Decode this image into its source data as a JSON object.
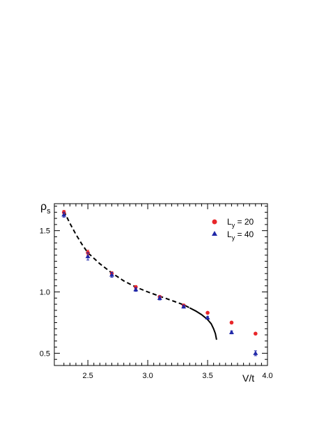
{
  "chart_data": {
    "type": "scatter",
    "xlabel": "V/t",
    "ylabel_main": "ρ",
    "ylabel_sub": "s",
    "xlim": [
      2.22,
      4.0
    ],
    "ylim": [
      0.4,
      1.72
    ],
    "xticks": [
      2.5,
      3.0,
      3.5,
      4.0
    ],
    "xtick_labels": [
      "2.5",
      "3.0",
      "3.5",
      "4.0"
    ],
    "yticks": [
      0.5,
      1.0,
      1.5
    ],
    "ytick_labels": [
      "0.5",
      "1.0",
      "1.5"
    ],
    "grid": false,
    "legend_position": "top-right",
    "series": [
      {
        "name_main": "L",
        "name_sub": "y",
        "name_rest": " = 20",
        "marker": "circle",
        "color": "#e8262a",
        "points": [
          {
            "x": 2.3,
            "y": 1.65,
            "err": 0.015
          },
          {
            "x": 2.5,
            "y": 1.32,
            "err": 0.02
          },
          {
            "x": 2.7,
            "y": 1.15,
            "err": 0.015
          },
          {
            "x": 2.9,
            "y": 1.04,
            "err": 0.012
          },
          {
            "x": 3.1,
            "y": 0.96,
            "err": 0.01
          },
          {
            "x": 3.3,
            "y": 0.89,
            "err": 0.01
          },
          {
            "x": 3.5,
            "y": 0.83,
            "err": 0.008
          },
          {
            "x": 3.7,
            "y": 0.75,
            "err": 0.008
          },
          {
            "x": 3.9,
            "y": 0.66,
            "err": 0.008
          }
        ]
      },
      {
        "name_main": "L",
        "name_sub": "y",
        "name_rest": " = 40",
        "marker": "triangle",
        "color": "#1f27a8",
        "points": [
          {
            "x": 2.3,
            "y": 1.63,
            "err": 0.02
          },
          {
            "x": 2.5,
            "y": 1.29,
            "err": 0.03
          },
          {
            "x": 2.7,
            "y": 1.14,
            "err": 0.02
          },
          {
            "x": 2.9,
            "y": 1.02,
            "err": 0.015
          },
          {
            "x": 3.1,
            "y": 0.95,
            "err": 0.015
          },
          {
            "x": 3.3,
            "y": 0.88,
            "err": 0.012
          },
          {
            "x": 3.5,
            "y": 0.79,
            "err": 0.01
          },
          {
            "x": 3.7,
            "y": 0.67,
            "err": 0.012
          },
          {
            "x": 3.9,
            "y": 0.5,
            "err": 0.02
          }
        ]
      }
    ],
    "fit_curve_dashed": [
      {
        "x": 2.3,
        "y": 1.66
      },
      {
        "x": 2.35,
        "y": 1.56
      },
      {
        "x": 2.4,
        "y": 1.47
      },
      {
        "x": 2.45,
        "y": 1.39
      },
      {
        "x": 2.5,
        "y": 1.32
      },
      {
        "x": 2.6,
        "y": 1.23
      },
      {
        "x": 2.7,
        "y": 1.155
      },
      {
        "x": 2.8,
        "y": 1.09
      },
      {
        "x": 2.9,
        "y": 1.04
      },
      {
        "x": 3.0,
        "y": 1.0
      },
      {
        "x": 3.1,
        "y": 0.965
      },
      {
        "x": 3.2,
        "y": 0.93
      },
      {
        "x": 3.3,
        "y": 0.895
      },
      {
        "x": 3.35,
        "y": 0.87
      }
    ],
    "fit_curve_solid": [
      {
        "x": 3.35,
        "y": 0.87
      },
      {
        "x": 3.4,
        "y": 0.845
      },
      {
        "x": 3.45,
        "y": 0.815
      },
      {
        "x": 3.5,
        "y": 0.775
      },
      {
        "x": 3.53,
        "y": 0.74
      },
      {
        "x": 3.55,
        "y": 0.7
      },
      {
        "x": 3.565,
        "y": 0.66
      },
      {
        "x": 3.575,
        "y": 0.61
      }
    ]
  }
}
